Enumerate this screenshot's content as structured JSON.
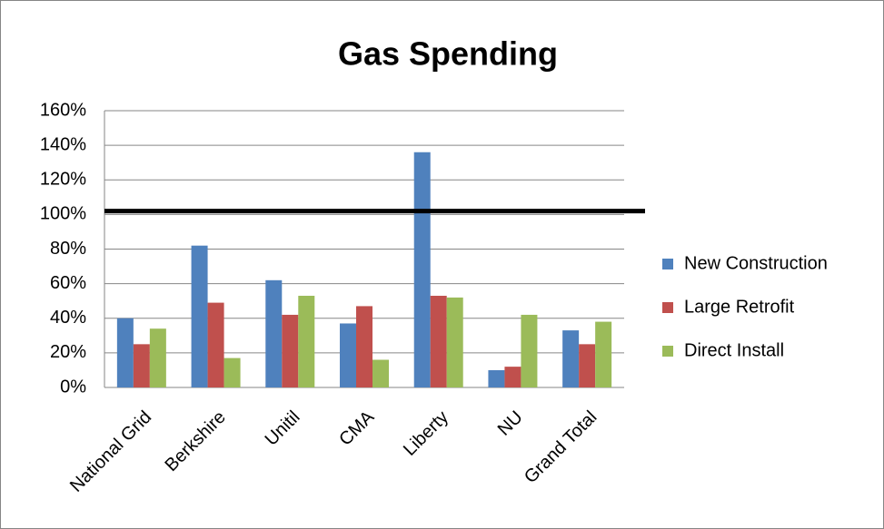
{
  "chart_data": {
    "type": "bar",
    "title": "Gas Spending",
    "categories": [
      "National Grid",
      "Berkshire",
      "Unitil",
      "CMA",
      "Liberty",
      "NU",
      "Grand Total"
    ],
    "series": [
      {
        "name": "New Construction",
        "color": "#4f81bd",
        "values": [
          40,
          82,
          62,
          37,
          136,
          10,
          33
        ]
      },
      {
        "name": "Large Retrofit",
        "color": "#c0504d",
        "values": [
          25,
          49,
          42,
          47,
          53,
          12,
          25
        ]
      },
      {
        "name": "Direct Install",
        "color": "#9bbb59",
        "values": [
          34,
          17,
          53,
          16,
          52,
          42,
          38
        ]
      }
    ],
    "ylim": [
      0,
      160
    ],
    "yticks": [
      {
        "value": 0,
        "label": "0%"
      },
      {
        "value": 20,
        "label": "20%"
      },
      {
        "value": 40,
        "label": "40%"
      },
      {
        "value": 60,
        "label": "60%"
      },
      {
        "value": 80,
        "label": "80%"
      },
      {
        "value": 100,
        "label": "100%"
      },
      {
        "value": 120,
        "label": "120%"
      },
      {
        "value": 140,
        "label": "140%"
      },
      {
        "value": 160,
        "label": "160%"
      }
    ],
    "grid": true,
    "legend": "right",
    "reference_line": 102
  }
}
